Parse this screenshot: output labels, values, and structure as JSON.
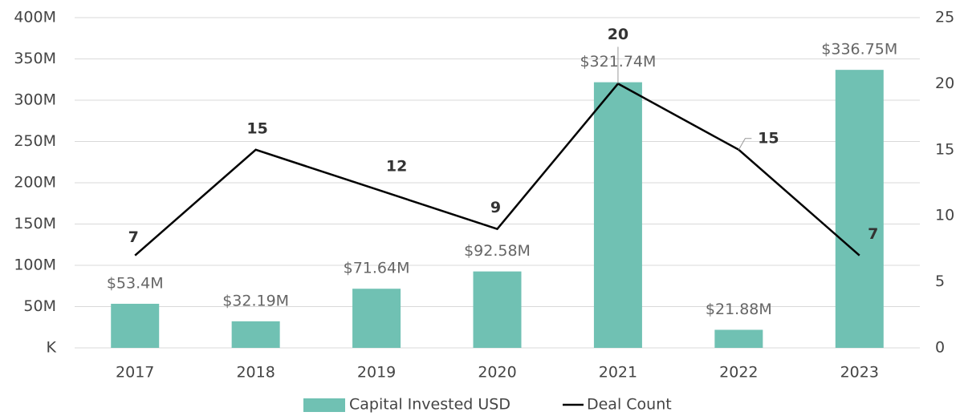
{
  "chart_data": {
    "type": "bar_line",
    "categories": [
      "2017",
      "2018",
      "2019",
      "2020",
      "2021",
      "2022",
      "2023"
    ],
    "series": [
      {
        "name": "Capital Invested USD",
        "type": "bar",
        "color": "#70c1b3",
        "values": [
          53400000,
          32190000,
          71640000,
          92580000,
          321740000,
          21880000,
          336750000
        ],
        "value_labels": [
          "$53.4M",
          "$32.19M",
          "$71.64M",
          "$92.58M",
          "$321.74M",
          "$21.88M",
          "$336.75M"
        ]
      },
      {
        "name": "Deal Count",
        "type": "line",
        "color": "#000000",
        "axis": "y2",
        "values": [
          7,
          15,
          12,
          9,
          20,
          15,
          7
        ]
      }
    ],
    "ylim": [
      0,
      400000000
    ],
    "yticks": [
      {
        "value": 0,
        "label": "K"
      },
      {
        "value": 50000000,
        "label": "50M"
      },
      {
        "value": 100000000,
        "label": "100M"
      },
      {
        "value": 150000000,
        "label": "150M"
      },
      {
        "value": 200000000,
        "label": "200M"
      },
      {
        "value": 250000000,
        "label": "250M"
      },
      {
        "value": 300000000,
        "label": "300M"
      },
      {
        "value": 350000000,
        "label": "350M"
      },
      {
        "value": 400000000,
        "label": "400M"
      }
    ],
    "y2lim": [
      0,
      25
    ],
    "y2ticks": [
      0,
      5,
      10,
      15,
      20,
      25
    ],
    "grid": true,
    "legend": "bottom"
  }
}
